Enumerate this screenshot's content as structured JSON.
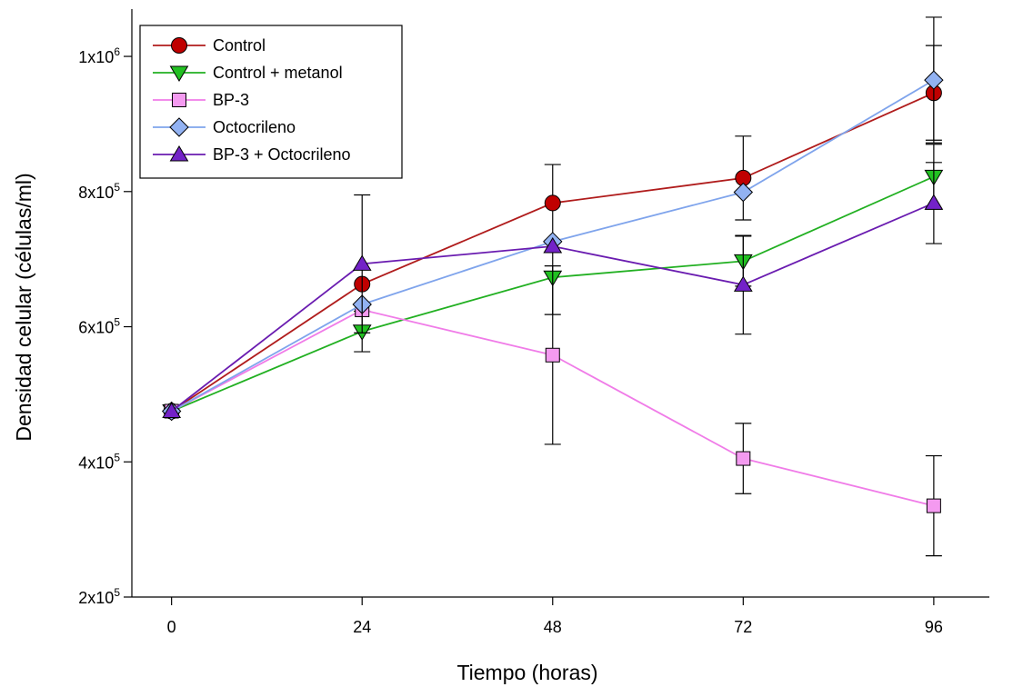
{
  "chart_data": {
    "type": "line",
    "title": "",
    "xlabel": "Tiempo (horas)",
    "ylabel": "Densidad celular (células/ml)",
    "x": [
      0,
      24,
      48,
      72,
      96
    ],
    "x_ticks": [
      0,
      24,
      48,
      72,
      96
    ],
    "x_tick_labels": [
      "0",
      "24",
      "48",
      "72",
      "96"
    ],
    "xlim": [
      -5,
      103
    ],
    "ylim": [
      200000,
      1070000
    ],
    "y_ticks": [
      {
        "value": 200000,
        "mantissa": "2x10",
        "exp": "5"
      },
      {
        "value": 400000,
        "mantissa": "4x10",
        "exp": "5"
      },
      {
        "value": 600000,
        "mantissa": "6x10",
        "exp": "5"
      },
      {
        "value": 800000,
        "mantissa": "8x10",
        "exp": "5"
      },
      {
        "value": 1000000,
        "mantissa": "1x10",
        "exp": "6"
      }
    ],
    "grid": false,
    "legend_position": "top-left",
    "series": [
      {
        "name": "Control",
        "color": "#b01c1c",
        "marker_fill": "#c00000",
        "marker": "circle",
        "values": [
          475000,
          663000,
          783000,
          820000,
          946000
        ],
        "errors": [
          0,
          0,
          57000,
          62000,
          70000
        ]
      },
      {
        "name": "Control + metanol",
        "color": "#22b022",
        "marker_fill": "#22c022",
        "marker": "triangle-down",
        "values": [
          475000,
          593000,
          673000,
          697000,
          822000
        ],
        "errors": [
          0,
          30000,
          55000,
          37000,
          48000
        ]
      },
      {
        "name": "BP-3",
        "color": "#f07ce8",
        "marker_fill": "#f49af0",
        "marker": "square",
        "values": [
          475000,
          625000,
          558000,
          405000,
          335000
        ],
        "errors": [
          0,
          0,
          132000,
          52000,
          74000
        ]
      },
      {
        "name": "Octocrileno",
        "color": "#7fa4ec",
        "marker_fill": "#92b2f2",
        "marker": "diamond",
        "values": [
          475000,
          633000,
          726000,
          799000,
          965000
        ],
        "errors": [
          0,
          0,
          0,
          0,
          93000
        ]
      },
      {
        "name": "BP-3 + Octocrileno",
        "color": "#6a1cb0",
        "marker_fill": "#7322c8",
        "marker": "triangle-up",
        "values": [
          475000,
          693000,
          719000,
          662000,
          783000
        ],
        "errors": [
          0,
          102000,
          0,
          73000,
          60000
        ]
      }
    ]
  }
}
